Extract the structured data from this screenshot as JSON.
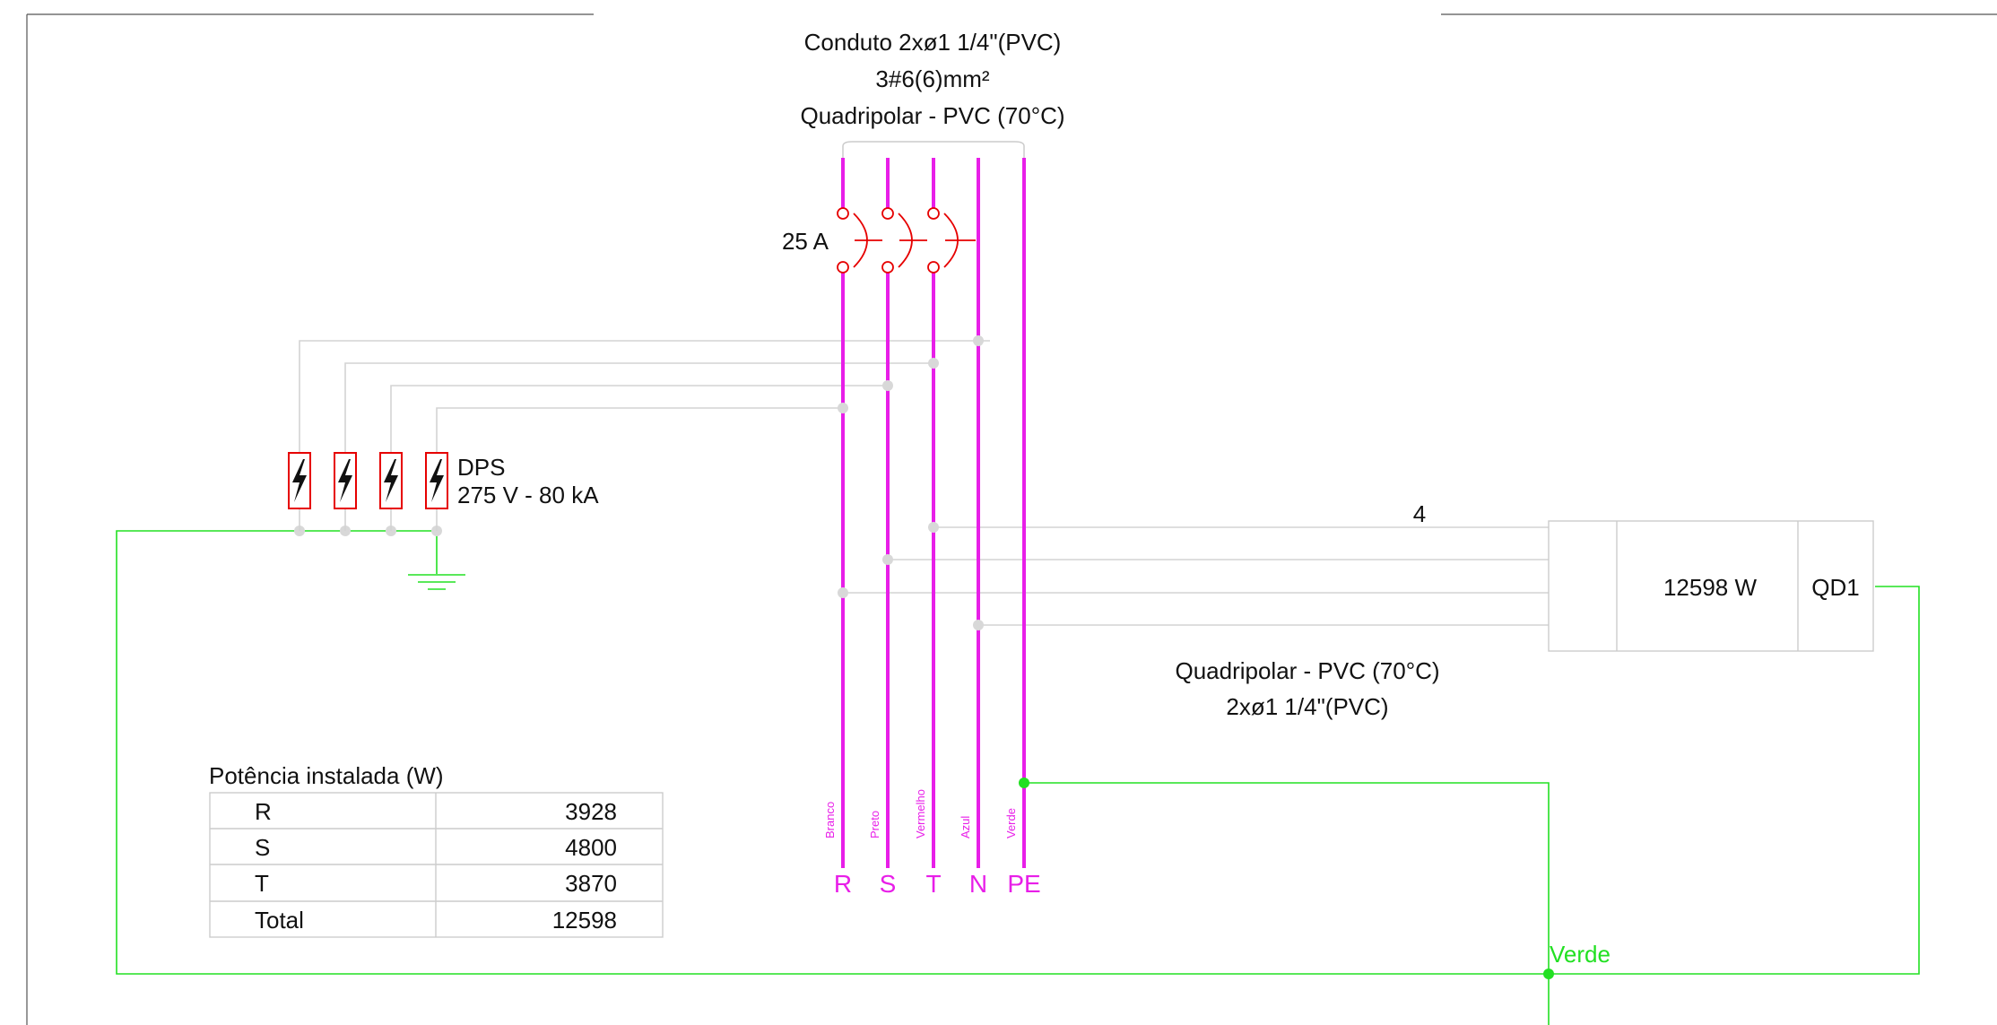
{
  "conduit_top": {
    "line1": "Conduto 2xø1 1/4\"(PVC)",
    "line2": "3#6(6)mm²",
    "line3": "Quadripolar - PVC (70°C)"
  },
  "breaker": {
    "rating": "25 A"
  },
  "dps": {
    "line1": "DPS",
    "line2": "275 V - 80 kA"
  },
  "panel": {
    "circuit_count": "4",
    "power": "12598 W",
    "name": "QD1"
  },
  "conduit_bottom": {
    "line1": "Quadripolar - PVC (70°C)",
    "line2": "2xø1 1/4\"(PVC)"
  },
  "ground_label": "Verde",
  "phases": [
    {
      "name": "R",
      "color_name": "Branco"
    },
    {
      "name": "S",
      "color_name": "Preto"
    },
    {
      "name": "T",
      "color_name": "Vermelho"
    },
    {
      "name": "N",
      "color_name": "Azul"
    },
    {
      "name": "PE",
      "color_name": "Verde"
    }
  ],
  "power_table": {
    "title": "Potência instalada (W)",
    "rows": [
      {
        "label": "R",
        "value": "3928"
      },
      {
        "label": "S",
        "value": "4800"
      },
      {
        "label": "T",
        "value": "3870"
      },
      {
        "label": "Total",
        "value": "12598"
      }
    ]
  },
  "colors": {
    "phase": "#e81ee8",
    "ground": "#22e022",
    "breaker": "#e60000",
    "wire": "#d4d4d4",
    "border": "#555555"
  }
}
